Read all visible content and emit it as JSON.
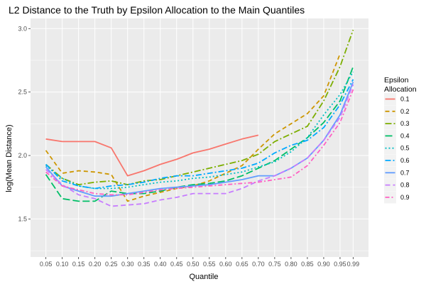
{
  "chart_data": {
    "type": "line",
    "title": "L2 Distance to the Truth by Epsilon Allocation to the Main Quantiles",
    "xlabel": "Quantile",
    "ylabel": "log(Mean Distance)",
    "x_ticks": [
      "0.05",
      "0.10",
      "0.15",
      "0.20",
      "0.25",
      "0.30",
      "0.35",
      "0.40",
      "0.45",
      "0.50",
      "0.55",
      "0.60",
      "0.65",
      "0.70",
      "0.75",
      "0.80",
      "0.85",
      "0.90",
      "0.95",
      "0.99"
    ],
    "x_tick_values": [
      0.05,
      0.1,
      0.15,
      0.2,
      0.25,
      0.3,
      0.35,
      0.4,
      0.45,
      0.5,
      0.55,
      0.6,
      0.65,
      0.7,
      0.75,
      0.8,
      0.85,
      0.9,
      0.95,
      0.99
    ],
    "y_ticks": [
      "1.5",
      "2.0",
      "2.5",
      "3.0"
    ],
    "y_tick_values": [
      1.5,
      2.0,
      2.5,
      3.0
    ],
    "xlim": [
      0.003,
      1.037
    ],
    "ylim": [
      1.2,
      3.08
    ],
    "grid": true,
    "legend": {
      "title_line1": "Epsilon",
      "title_line2": "Allocation",
      "position": "right"
    },
    "series": [
      {
        "name": "0.1",
        "color": "#F8766D",
        "dash": "none",
        "x": [
          0.05,
          0.1,
          0.15,
          0.2,
          0.25,
          0.3,
          0.35,
          0.4,
          0.45,
          0.5,
          0.55,
          0.6,
          0.65,
          0.7
        ],
        "y": [
          2.13,
          2.11,
          2.11,
          2.11,
          2.06,
          1.84,
          1.88,
          1.93,
          1.97,
          2.02,
          2.05,
          2.09,
          2.13,
          2.16
        ]
      },
      {
        "name": "0.2",
        "color": "#CD9600",
        "dash": "6,4",
        "x": [
          0.05,
          0.1,
          0.15,
          0.2,
          0.25,
          0.3,
          0.35,
          0.4,
          0.45,
          0.5,
          0.55,
          0.6,
          0.65,
          0.7,
          0.75,
          0.8,
          0.85,
          0.9,
          0.95
        ],
        "y": [
          2.04,
          1.86,
          1.88,
          1.87,
          1.85,
          1.64,
          1.68,
          1.71,
          1.74,
          1.76,
          1.8,
          1.86,
          1.92,
          2.05,
          2.17,
          2.25,
          2.33,
          2.47,
          2.8
        ]
      },
      {
        "name": "0.3",
        "color": "#7CAE00",
        "dash": "9,3,2,3",
        "x": [
          0.05,
          0.1,
          0.15,
          0.2,
          0.25,
          0.3,
          0.35,
          0.4,
          0.45,
          0.5,
          0.55,
          0.6,
          0.65,
          0.7,
          0.75,
          0.8,
          0.85,
          0.9,
          0.95,
          0.99
        ],
        "y": [
          1.93,
          1.82,
          1.77,
          1.79,
          1.8,
          1.77,
          1.8,
          1.81,
          1.84,
          1.87,
          1.9,
          1.93,
          1.96,
          2.01,
          2.11,
          2.17,
          2.23,
          2.43,
          2.7,
          2.99
        ]
      },
      {
        "name": "0.4",
        "color": "#00BE67",
        "dash": "10,4",
        "x": [
          0.05,
          0.1,
          0.15,
          0.2,
          0.25,
          0.3,
          0.35,
          0.4,
          0.45,
          0.5,
          0.55,
          0.6,
          0.65,
          0.7,
          0.75,
          0.8,
          0.85,
          0.9,
          0.95,
          0.99
        ],
        "y": [
          1.85,
          1.66,
          1.64,
          1.64,
          1.72,
          1.7,
          1.7,
          1.72,
          1.75,
          1.77,
          1.78,
          1.8,
          1.84,
          1.9,
          1.96,
          2.05,
          2.14,
          2.26,
          2.43,
          2.7
        ]
      },
      {
        "name": "0.5",
        "color": "#00BFC4",
        "dash": "2,3",
        "x": [
          0.05,
          0.1,
          0.15,
          0.2,
          0.25,
          0.3,
          0.35,
          0.4,
          0.45,
          0.5,
          0.55,
          0.6,
          0.65,
          0.7,
          0.75,
          0.8,
          0.85,
          0.9,
          0.95,
          0.99
        ],
        "y": [
          1.92,
          1.82,
          1.76,
          1.74,
          1.74,
          1.75,
          1.77,
          1.79,
          1.8,
          1.82,
          1.83,
          1.85,
          1.87,
          1.91,
          1.95,
          2.03,
          2.14,
          2.32,
          2.48,
          2.66
        ]
      },
      {
        "name": "0.6",
        "color": "#00A9FF",
        "dash": "8,3,2,3",
        "x": [
          0.05,
          0.1,
          0.15,
          0.2,
          0.25,
          0.3,
          0.35,
          0.4,
          0.45,
          0.5,
          0.55,
          0.6,
          0.65,
          0.7,
          0.75,
          0.8,
          0.85,
          0.9,
          0.95,
          0.99
        ],
        "y": [
          1.93,
          1.8,
          1.76,
          1.74,
          1.76,
          1.77,
          1.79,
          1.82,
          1.84,
          1.84,
          1.86,
          1.88,
          1.9,
          1.94,
          2.02,
          2.08,
          2.12,
          2.22,
          2.4,
          2.6
        ]
      },
      {
        "name": "0.7",
        "color": "#619CFF",
        "dash": "none",
        "x": [
          0.05,
          0.1,
          0.15,
          0.2,
          0.25,
          0.3,
          0.35,
          0.4,
          0.45,
          0.5,
          0.55,
          0.6,
          0.65,
          0.7,
          0.75,
          0.8,
          0.85,
          0.9,
          0.95,
          0.99
        ],
        "y": [
          1.91,
          1.76,
          1.72,
          1.68,
          1.68,
          1.7,
          1.72,
          1.74,
          1.75,
          1.76,
          1.77,
          1.79,
          1.81,
          1.84,
          1.84,
          1.9,
          1.98,
          2.12,
          2.32,
          2.58
        ]
      },
      {
        "name": "0.8",
        "color": "#C77CFF",
        "dash": "7,4",
        "x": [
          0.05,
          0.1,
          0.15,
          0.2,
          0.25,
          0.3,
          0.35,
          0.4,
          0.45,
          0.5,
          0.55,
          0.6,
          0.65,
          0.7,
          0.75,
          0.8,
          0.85,
          0.9,
          0.95,
          0.99
        ],
        "y": [
          1.89,
          1.77,
          1.69,
          1.66,
          1.6,
          1.61,
          1.62,
          1.65,
          1.67,
          1.7,
          1.7,
          1.7,
          1.74,
          1.8,
          1.84,
          1.9,
          1.98,
          2.12,
          2.3,
          2.56
        ]
      },
      {
        "name": "0.9",
        "color": "#FF61C3",
        "dash": "6,3,2,3",
        "x": [
          0.05,
          0.1,
          0.15,
          0.2,
          0.25,
          0.3,
          0.35,
          0.4,
          0.45,
          0.5,
          0.55,
          0.6,
          0.65,
          0.7,
          0.75,
          0.8,
          0.85,
          0.9,
          0.95,
          0.99
        ],
        "y": [
          1.87,
          1.76,
          1.73,
          1.7,
          1.69,
          1.69,
          1.71,
          1.73,
          1.74,
          1.75,
          1.76,
          1.77,
          1.78,
          1.79,
          1.81,
          1.83,
          1.92,
          2.08,
          2.26,
          2.52
        ]
      }
    ]
  }
}
